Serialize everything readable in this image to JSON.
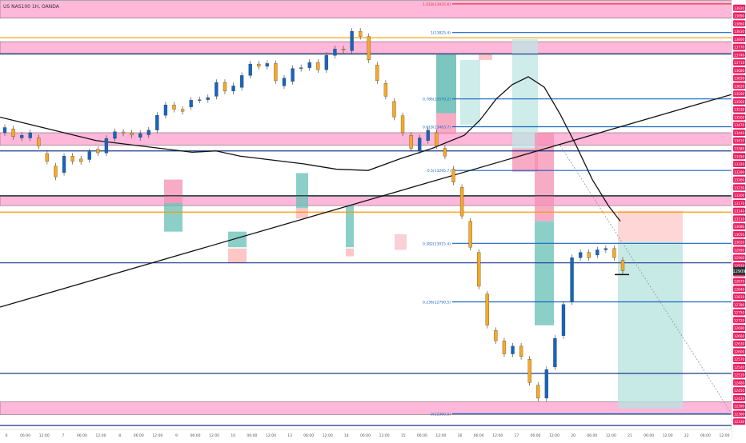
{
  "header": {
    "symbol_text": "US NAS100 1H, OANDA",
    "colors": {
      "text": "#333333"
    }
  },
  "chart_data": {
    "type": "candlestick",
    "ylim": [
      12300,
      13950
    ],
    "x_ticks": [
      "6",
      "06:00",
      "12:00",
      "7",
      "06:00",
      "12:00",
      "8",
      "06:00",
      "12:00",
      "9",
      "06:00",
      "12:00",
      "10",
      "06:00",
      "12:00",
      "13",
      "06:00",
      "12:00",
      "14",
      "06:00",
      "12:00",
      "15",
      "06:00",
      "12:00",
      "16",
      "06:00",
      "12:00",
      "17",
      "06:00",
      "12:00",
      "20",
      "06:00",
      "12:00",
      "21",
      "06:00",
      "12:00",
      "22",
      "06:00",
      "12:00"
    ],
    "price_axis_labels": [
      "13920",
      "13890",
      "13860",
      "13830",
      "13800",
      "13770",
      "13740",
      "13710",
      "13680",
      "13650",
      "13620",
      "13590",
      "13560",
      "13530",
      "13500",
      "13470",
      "13440",
      "13410",
      "13380",
      "13350",
      "13320",
      "13290",
      "13260",
      "13230",
      "13200",
      "13170",
      "13140",
      "13110",
      "13080",
      "13050",
      "13020",
      "12990",
      "12960",
      "12930",
      "12900",
      "12870",
      "12840",
      "12810",
      "12780",
      "12750",
      "12720",
      "12690",
      "12660",
      "12630",
      "12600",
      "12570",
      "12540",
      "12510",
      "12480",
      "12450",
      "12420",
      "12390",
      "12360",
      "12330"
    ],
    "current_price": {
      "label": "12909",
      "value": 12909
    },
    "supply_demand_zones": [
      {
        "low": 13880,
        "high": 13948
      },
      {
        "low": 13745,
        "high": 13790
      },
      {
        "low": 13392,
        "high": 13440
      },
      {
        "low": 13160,
        "high": 13195
      },
      {
        "low": 12357,
        "high": 12406
      }
    ],
    "horizontal_levels": [
      {
        "price": 13935,
        "color": "#e53935",
        "label": "1.618(13935.6)"
      },
      {
        "price": 13825,
        "color": "#1565c0",
        "label": "1(13825.4)"
      },
      {
        "price": 13805,
        "color": "#ff9800",
        "label": ""
      },
      {
        "price": 13742,
        "color": "#1e3a8a",
        "label": ""
      },
      {
        "price": 13570,
        "color": "#1565c0",
        "label": "0.786(13570.2)"
      },
      {
        "price": 13463,
        "color": "#1565c0",
        "label": "0.618(13463.7)"
      },
      {
        "price": 13370,
        "color": "#1e3a8a",
        "label": ""
      },
      {
        "price": 13295,
        "color": "#1565c0",
        "label": "0.5(13295.7)"
      },
      {
        "price": 13198,
        "color": "#263238",
        "label": ""
      },
      {
        "price": 13135,
        "color": "#ff9800",
        "label": ""
      },
      {
        "price": 13015,
        "color": "#1565c0",
        "label": "0.382(13015.4)"
      },
      {
        "price": 12940,
        "color": "#1e3a8a",
        "label": ""
      },
      {
        "price": 12790,
        "color": "#1565c0",
        "label": "0.236(12790.5)"
      },
      {
        "price": 12515,
        "color": "#1e3a8a",
        "label": ""
      },
      {
        "price": 12360,
        "color": "#1565c0",
        "label": "0(12360.5)"
      },
      {
        "price": 12315,
        "color": "#1e3a8a",
        "label": ""
      }
    ],
    "trendline": {
      "from": [
        0,
        12770
      ],
      "to": [
        915,
        13588
      ]
    },
    "ma_series": [
      [
        0,
        13500
      ],
      [
        40,
        13470
      ],
      [
        80,
        13440
      ],
      [
        120,
        13410
      ],
      [
        160,
        13395
      ],
      [
        200,
        13380
      ],
      [
        240,
        13365
      ],
      [
        270,
        13370
      ],
      [
        300,
        13350
      ],
      [
        340,
        13335
      ],
      [
        380,
        13320
      ],
      [
        420,
        13300
      ],
      [
        460,
        13295
      ],
      [
        500,
        13340
      ],
      [
        540,
        13380
      ],
      [
        580,
        13430
      ],
      [
        600,
        13490
      ],
      [
        620,
        13570
      ],
      [
        640,
        13625
      ],
      [
        660,
        13655
      ],
      [
        680,
        13615
      ],
      [
        700,
        13510
      ],
      [
        720,
        13390
      ],
      [
        740,
        13260
      ],
      [
        760,
        13160
      ],
      [
        775,
        13100
      ]
    ],
    "candles": [
      [
        13440,
        13460
      ],
      [
        13455,
        13425
      ],
      [
        13420,
        13430
      ],
      [
        13420,
        13440
      ],
      [
        13420,
        13389
      ],
      [
        13360,
        13330
      ],
      [
        13312,
        13270
      ],
      [
        13287,
        13350
      ],
      [
        13350,
        13330
      ],
      [
        13339,
        13329
      ],
      [
        13337,
        13367
      ],
      [
        13376,
        13363
      ],
      [
        13362,
        13418
      ],
      [
        13418,
        13444
      ],
      [
        13443,
        13439
      ],
      [
        13439,
        13431
      ],
      [
        13422,
        13437
      ],
      [
        13432,
        13450
      ],
      [
        13450,
        13507
      ],
      [
        13507,
        13547
      ],
      [
        13547,
        13530
      ],
      [
        13530,
        13522
      ],
      [
        13539,
        13565
      ],
      [
        13565,
        13567
      ],
      [
        13567,
        13575
      ],
      [
        13580,
        13633
      ],
      [
        13633,
        13600
      ],
      [
        13600,
        13620
      ],
      [
        13614,
        13660
      ],
      [
        13660,
        13704
      ],
      [
        13704,
        13695
      ],
      [
        13695,
        13706
      ],
      [
        13706,
        13640
      ],
      [
        13620,
        13650
      ],
      [
        13637,
        13687
      ],
      [
        13687,
        13690
      ],
      [
        13690,
        13710
      ],
      [
        13710,
        13682
      ],
      [
        13682,
        13737
      ],
      [
        13737,
        13762
      ],
      [
        13762,
        13757
      ],
      [
        13755,
        13830
      ],
      [
        13830,
        13810
      ],
      [
        13810,
        13720
      ],
      [
        13700,
        13640
      ],
      [
        13630,
        13580
      ],
      [
        13560,
        13500
      ],
      [
        13505,
        13440
      ],
      [
        13430,
        13380
      ],
      [
        13370,
        13420
      ],
      [
        13410,
        13450
      ],
      [
        13440,
        13390
      ],
      [
        13380,
        13350
      ],
      [
        13300,
        13250
      ],
      [
        13230,
        13120
      ],
      [
        13100,
        13000
      ],
      [
        12980,
        12850
      ],
      [
        12820,
        12700
      ],
      [
        12680,
        12640
      ],
      [
        12640,
        12590
      ],
      [
        12590,
        12620
      ],
      [
        12620,
        12580
      ],
      [
        12570,
        12480
      ],
      [
        12470,
        12420
      ],
      [
        12420,
        12530
      ],
      [
        12540,
        12650
      ],
      [
        12660,
        12780
      ],
      [
        12790,
        12960
      ],
      [
        12960,
        12980
      ],
      [
        12980,
        12960
      ],
      [
        12970,
        12990
      ],
      [
        12990,
        12995
      ],
      [
        12995,
        12960
      ],
      [
        12950,
        12910
      ]
    ]
  }
}
